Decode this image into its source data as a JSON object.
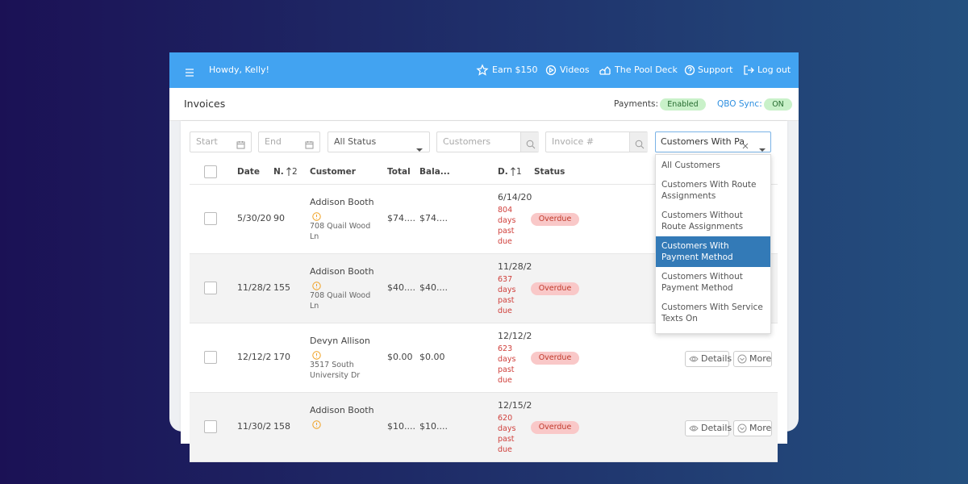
{
  "topbar": {
    "greeting": "Howdy, Kelly!",
    "nav": [
      "Earn $150",
      "Videos",
      "The Pool Deck",
      "Support",
      "Log out"
    ]
  },
  "header": {
    "title": "Invoices",
    "payments_label": "Payments:",
    "payments_status": "Enabled",
    "qbo_label": "QBO Sync:",
    "qbo_status": "ON"
  },
  "filters": {
    "start": "Start",
    "end": "End",
    "status": "All Status",
    "customers": "Customers",
    "invoice": "Invoice #",
    "customer_filter": "Customers With Pa"
  },
  "table": {
    "columns": [
      {
        "label": "Date"
      },
      {
        "label": "N.",
        "sort": "2"
      },
      {
        "label": "Customer"
      },
      {
        "label": "Total"
      },
      {
        "label": "Bala..."
      },
      {
        "label": "D.",
        "sort": "1"
      },
      {
        "label": "Status"
      }
    ],
    "rows": [
      {
        "date": "5/30/20",
        "number": "90",
        "customer": "Addison Booth",
        "address": "708 Quail Wood Ln",
        "total": "$74....",
        "balance": "$74....",
        "due_date": "6/14/20",
        "overdue": "804 days past due",
        "status": "Overdue"
      },
      {
        "date": "11/28/2",
        "number": "155",
        "customer": "Addison Booth",
        "address": "708 Quail Wood Ln",
        "total": "$40....",
        "balance": "$40....",
        "due_date": "11/28/2",
        "overdue": "637 days past due",
        "status": "Overdue"
      },
      {
        "date": "12/12/2",
        "number": "170",
        "customer": "Devyn Allison",
        "address": "3517 South University Dr",
        "total": "$0.00",
        "balance": "$0.00",
        "due_date": "12/12/2",
        "overdue": "623 days past due",
        "status": "Overdue",
        "actions": [
          "Details",
          "More"
        ]
      },
      {
        "date": "11/30/2",
        "number": "158",
        "customer": "Addison Booth",
        "total": "$10....",
        "balance": "$10....",
        "due_date": "12/15/2",
        "overdue": "620 days past due",
        "status": "Overdue",
        "actions": [
          "Details",
          "More"
        ]
      }
    ]
  },
  "dropdown": {
    "options": [
      "All Customers",
      "Customers With Route Assignments",
      "Customers Without Route Assignments",
      "Customers With Payment Method",
      "Customers Without Payment Method",
      "Customers With Service Texts On"
    ],
    "selected": 3
  }
}
